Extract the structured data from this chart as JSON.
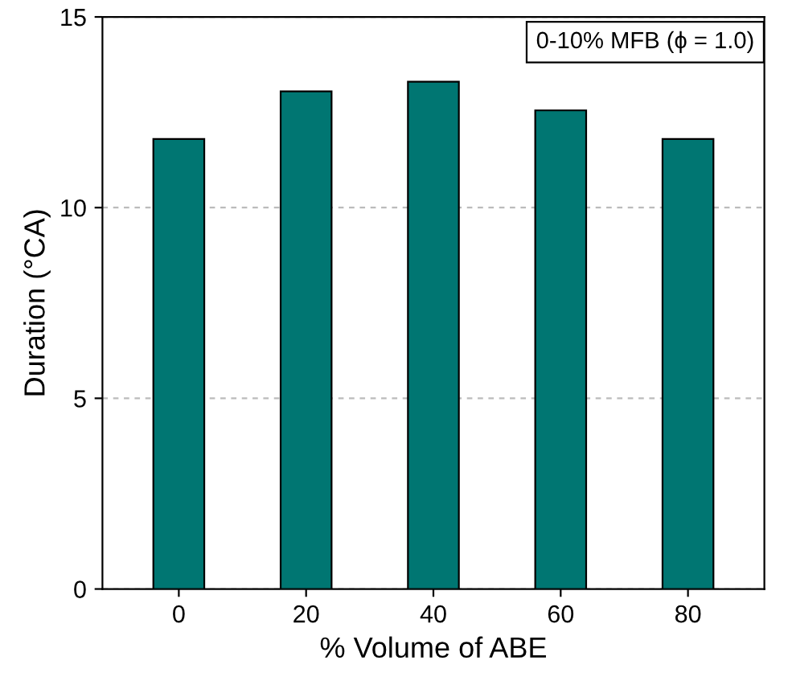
{
  "chart_data": {
    "type": "bar",
    "xlabel": "% Volume of ABE",
    "ylabel": "Duration (°CA)",
    "categories": [
      "0",
      "20",
      "40",
      "60",
      "80"
    ],
    "series": [
      {
        "color": "#007672",
        "values": [
          11.8,
          13.05,
          13.3,
          12.55,
          11.8
        ]
      }
    ],
    "ylim": [
      0,
      15
    ],
    "yticks": [
      0,
      5,
      10,
      15
    ],
    "grid": "y",
    "annotations": [
      "0-10% MFB (ϕ = 1.0)"
    ],
    "legend": false
  }
}
